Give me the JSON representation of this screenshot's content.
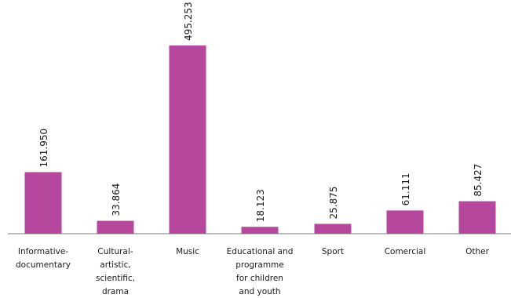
{
  "chart_data": {
    "type": "bar",
    "categories": [
      [
        "Informative-",
        "documentary"
      ],
      [
        "Cultural-",
        "artistic,",
        "scientific,",
        "drama"
      ],
      [
        "Music"
      ],
      [
        "Educational and",
        "programme",
        "for children",
        "and youth"
      ],
      [
        "Sport"
      ],
      [
        "Comercial"
      ],
      [
        "Other"
      ]
    ],
    "values": [
      161950,
      33864,
      495253,
      18123,
      25875,
      61111,
      85427
    ],
    "value_labels": [
      "161.950",
      "33.864",
      "495.253",
      "18.123",
      "25.875",
      "61.111",
      "85.427"
    ],
    "bar_color": "#b5489d",
    "axis_color": "#7a7a7a",
    "ylim": [
      0,
      495253
    ],
    "grid": false,
    "legend": "none"
  }
}
